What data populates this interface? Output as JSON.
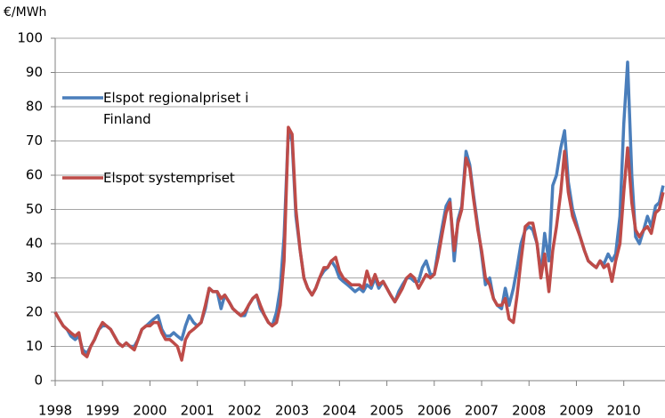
{
  "chart_data": {
    "type": "line",
    "y_label": "€/MWh",
    "xlim": [
      1998,
      2010.87
    ],
    "xticks": [
      1998,
      1999,
      2000,
      2001,
      2002,
      2003,
      2004,
      2005,
      2006,
      2007,
      2008,
      2009,
      2010
    ],
    "ylim": [
      0,
      100
    ],
    "yticks": [
      0,
      10,
      20,
      30,
      40,
      50,
      60,
      70,
      80,
      90,
      100
    ],
    "grid": true,
    "legend": "upper left",
    "x": [
      1998.0,
      1998.08,
      1998.17,
      1998.25,
      1998.33,
      1998.42,
      1998.5,
      1998.58,
      1998.67,
      1998.75,
      1998.83,
      1998.92,
      1999.0,
      1999.08,
      1999.17,
      1999.25,
      1999.33,
      1999.42,
      1999.5,
      1999.58,
      1999.67,
      1999.75,
      1999.83,
      1999.92,
      2000.0,
      2000.08,
      2000.17,
      2000.25,
      2000.33,
      2000.42,
      2000.5,
      2000.58,
      2000.67,
      2000.75,
      2000.83,
      2000.92,
      2001.0,
      2001.08,
      2001.17,
      2001.25,
      2001.33,
      2001.42,
      2001.5,
      2001.58,
      2001.67,
      2001.75,
      2001.83,
      2001.92,
      2002.0,
      2002.08,
      2002.17,
      2002.25,
      2002.33,
      2002.42,
      2002.5,
      2002.58,
      2002.67,
      2002.75,
      2002.83,
      2002.92,
      2003.0,
      2003.08,
      2003.17,
      2003.25,
      2003.33,
      2003.42,
      2003.5,
      2003.58,
      2003.67,
      2003.75,
      2003.83,
      2003.92,
      2004.0,
      2004.08,
      2004.17,
      2004.25,
      2004.33,
      2004.42,
      2004.5,
      2004.58,
      2004.67,
      2004.75,
      2004.83,
      2004.92,
      2005.0,
      2005.08,
      2005.17,
      2005.25,
      2005.33,
      2005.42,
      2005.5,
      2005.58,
      2005.67,
      2005.75,
      2005.83,
      2005.92,
      2006.0,
      2006.08,
      2006.17,
      2006.25,
      2006.33,
      2006.42,
      2006.5,
      2006.58,
      2006.67,
      2006.75,
      2006.83,
      2006.92,
      2007.0,
      2007.08,
      2007.17,
      2007.25,
      2007.33,
      2007.42,
      2007.5,
      2007.58,
      2007.67,
      2007.75,
      2007.83,
      2007.92,
      2008.0,
      2008.08,
      2008.17,
      2008.25,
      2008.33,
      2008.42,
      2008.5,
      2008.58,
      2008.67,
      2008.75,
      2008.83,
      2008.92,
      2009.0,
      2009.08,
      2009.17,
      2009.25,
      2009.33,
      2009.42,
      2009.5,
      2009.58,
      2009.67,
      2009.75,
      2009.83,
      2009.92,
      2010.0,
      2010.08,
      2010.17,
      2010.25,
      2010.33,
      2010.42,
      2010.5,
      2010.58,
      2010.67,
      2010.75,
      2010.83
    ],
    "series": [
      {
        "name": "Elspot regionalpriset i Finland",
        "color": "#4a7ebb",
        "values": [
          20,
          18,
          16,
          15,
          13,
          12,
          13,
          9,
          8,
          10,
          12,
          15,
          16,
          16,
          15,
          13,
          11,
          10,
          11,
          10,
          10,
          12,
          15,
          16,
          17,
          18,
          19,
          15,
          13,
          13,
          14,
          13,
          12,
          16,
          19,
          17,
          16,
          17,
          21,
          27,
          26,
          26,
          21,
          25,
          23,
          21,
          20,
          19,
          19,
          22,
          24,
          25,
          21,
          19,
          17,
          16,
          20,
          27,
          42,
          73,
          70,
          48,
          38,
          30,
          27,
          25,
          27,
          30,
          32,
          33,
          35,
          33,
          30,
          29,
          28,
          27,
          26,
          27,
          26,
          28,
          27,
          30,
          27,
          29,
          27,
          25,
          23,
          26,
          28,
          30,
          30,
          29,
          29,
          33,
          35,
          31,
          31,
          38,
          45,
          51,
          53,
          35,
          47,
          51,
          67,
          63,
          54,
          45,
          37,
          28,
          30,
          24,
          22,
          21,
          27,
          22,
          27,
          33,
          40,
          44,
          45,
          44,
          40,
          31,
          43,
          35,
          57,
          60,
          68,
          73,
          58,
          50,
          46,
          42,
          38,
          35,
          34,
          33,
          35,
          34,
          37,
          35,
          37,
          48,
          75,
          93,
          60,
          42,
          40,
          44,
          48,
          45,
          51,
          52,
          57
        ]
      },
      {
        "name": "Elspot systempriset",
        "color": "#be4b48",
        "values": [
          20,
          18,
          16,
          15,
          14,
          13,
          14,
          8,
          7,
          10,
          12,
          15,
          17,
          16,
          15,
          13,
          11,
          10,
          11,
          10,
          9,
          12,
          15,
          16,
          16,
          17,
          17,
          14,
          12,
          12,
          11,
          10,
          6,
          12,
          14,
          15,
          16,
          17,
          22,
          27,
          26,
          26,
          24,
          25,
          23,
          21,
          20,
          19,
          20,
          22,
          24,
          25,
          22,
          19,
          17,
          16,
          17,
          22,
          35,
          74,
          72,
          50,
          38,
          30,
          27,
          25,
          27,
          30,
          33,
          33,
          35,
          36,
          32,
          30,
          29,
          28,
          28,
          28,
          27,
          32,
          28,
          31,
          28,
          29,
          27,
          25,
          23,
          25,
          27,
          30,
          31,
          30,
          27,
          29,
          31,
          30,
          31,
          36,
          43,
          49,
          52,
          38,
          46,
          50,
          65,
          62,
          53,
          44,
          38,
          30,
          28,
          24,
          22,
          22,
          24,
          18,
          17,
          25,
          35,
          45,
          46,
          46,
          40,
          30,
          37,
          26,
          38,
          45,
          55,
          67,
          55,
          48,
          45,
          42,
          38,
          35,
          34,
          33,
          35,
          33,
          34,
          29,
          35,
          40,
          55,
          68,
          52,
          44,
          42,
          44,
          45,
          43,
          49,
          50,
          55
        ]
      }
    ]
  }
}
